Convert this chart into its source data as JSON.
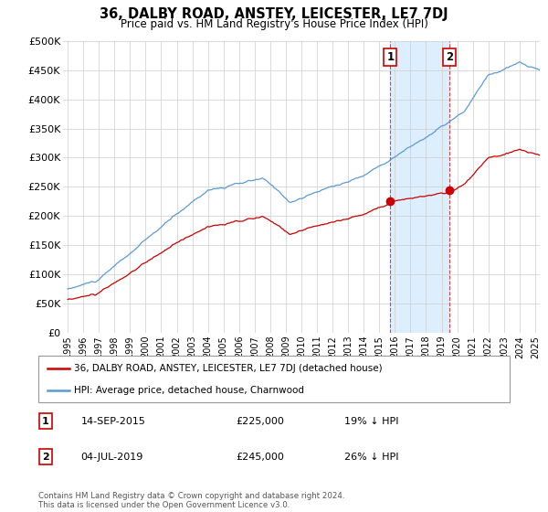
{
  "title": "36, DALBY ROAD, ANSTEY, LEICESTER, LE7 7DJ",
  "subtitle": "Price paid vs. HM Land Registry's House Price Index (HPI)",
  "ylim": [
    0,
    500000
  ],
  "yticks": [
    0,
    50000,
    100000,
    150000,
    200000,
    250000,
    300000,
    350000,
    400000,
    450000,
    500000
  ],
  "ytick_labels": [
    "£0",
    "£50K",
    "£100K",
    "£150K",
    "£200K",
    "£250K",
    "£300K",
    "£350K",
    "£400K",
    "£450K",
    "£500K"
  ],
  "hpi_color": "#5b9bd5",
  "price_color": "#cc0000",
  "t1_year": 2015.708,
  "t1_price": 225000,
  "t2_year": 2019.5,
  "t2_price": 245000,
  "legend_label_price": "36, DALBY ROAD, ANSTEY, LEICESTER, LE7 7DJ (detached house)",
  "legend_label_hpi": "HPI: Average price, detached house, Charnwood",
  "transaction1_date": "14-SEP-2015",
  "transaction1_pct": "19% ↓ HPI",
  "transaction2_date": "04-JUL-2019",
  "transaction2_pct": "26% ↓ HPI",
  "footer": "Contains HM Land Registry data © Crown copyright and database right 2024.\nThis data is licensed under the Open Government Licence v3.0.",
  "background_color": "#ffffff",
  "grid_color": "#cccccc",
  "shade_color": "#ddeeff",
  "hpi_seed": 10,
  "price_seed": 20
}
